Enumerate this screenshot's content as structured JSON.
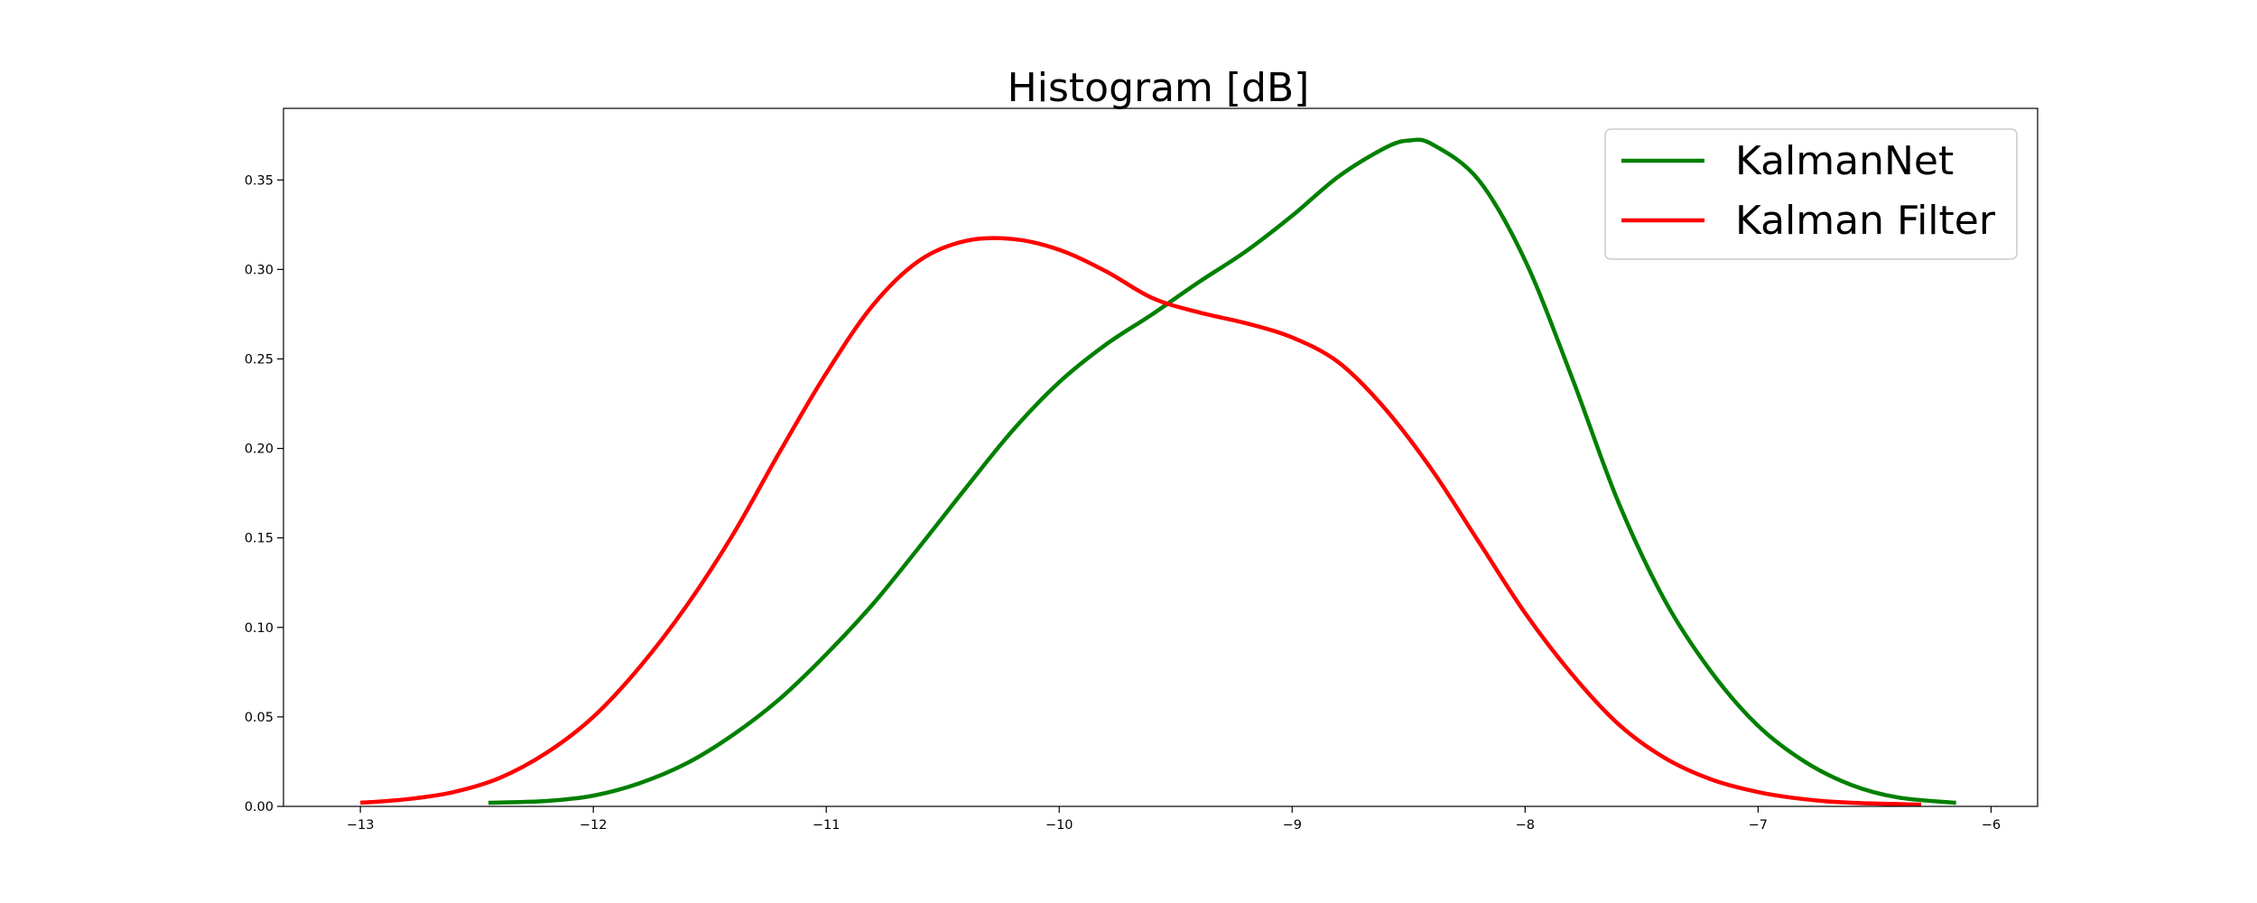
{
  "chart_data": {
    "type": "line",
    "title": "Histogram [dB]",
    "xlabel": "",
    "ylabel": "",
    "xlim": [
      -13.33,
      -5.8
    ],
    "ylim": [
      0,
      0.39
    ],
    "grid": false,
    "legend_position": "top-right",
    "x_ticks": [
      -13,
      -12,
      -11,
      -10,
      -9,
      -8,
      -7,
      -6
    ],
    "x_tick_labels": [
      "−13",
      "−12",
      "−11",
      "−10",
      "−9",
      "−8",
      "−7",
      "−6"
    ],
    "y_ticks": [
      0.0,
      0.05,
      0.1,
      0.15,
      0.2,
      0.25,
      0.3,
      0.35
    ],
    "y_tick_labels": [
      "0.00",
      "0.05",
      "0.10",
      "0.15",
      "0.20",
      "0.25",
      "0.30",
      "0.35"
    ],
    "series": [
      {
        "name": "KalmanNet",
        "color": "#008000",
        "x": [
          -12.45,
          -12.2,
          -12.0,
          -11.8,
          -11.6,
          -11.4,
          -11.2,
          -11.0,
          -10.8,
          -10.6,
          -10.4,
          -10.2,
          -10.0,
          -9.8,
          -9.6,
          -9.4,
          -9.2,
          -9.0,
          -8.8,
          -8.6,
          -8.5,
          -8.4,
          -8.2,
          -8.0,
          -7.8,
          -7.6,
          -7.4,
          -7.2,
          -7.0,
          -6.8,
          -6.6,
          -6.4,
          -6.15
        ],
        "y": [
          0.002,
          0.003,
          0.006,
          0.013,
          0.024,
          0.04,
          0.06,
          0.085,
          0.113,
          0.145,
          0.178,
          0.21,
          0.237,
          0.258,
          0.275,
          0.293,
          0.31,
          0.33,
          0.352,
          0.368,
          0.372,
          0.37,
          0.35,
          0.305,
          0.24,
          0.17,
          0.115,
          0.075,
          0.045,
          0.025,
          0.012,
          0.005,
          0.002
        ]
      },
      {
        "name": "Kalman Filter",
        "color": "#ff0000",
        "x": [
          -13.0,
          -12.8,
          -12.6,
          -12.4,
          -12.2,
          -12.0,
          -11.8,
          -11.6,
          -11.4,
          -11.2,
          -11.0,
          -10.8,
          -10.6,
          -10.4,
          -10.2,
          -10.0,
          -9.8,
          -9.6,
          -9.4,
          -9.2,
          -9.0,
          -8.8,
          -8.6,
          -8.4,
          -8.2,
          -8.0,
          -7.8,
          -7.6,
          -7.4,
          -7.2,
          -7.0,
          -6.8,
          -6.6,
          -6.3
        ],
        "y": [
          0.002,
          0.004,
          0.008,
          0.016,
          0.03,
          0.05,
          0.078,
          0.112,
          0.152,
          0.198,
          0.242,
          0.28,
          0.305,
          0.316,
          0.317,
          0.311,
          0.299,
          0.284,
          0.276,
          0.27,
          0.262,
          0.248,
          0.222,
          0.188,
          0.148,
          0.108,
          0.074,
          0.046,
          0.027,
          0.015,
          0.008,
          0.004,
          0.002,
          0.001
        ]
      }
    ]
  }
}
